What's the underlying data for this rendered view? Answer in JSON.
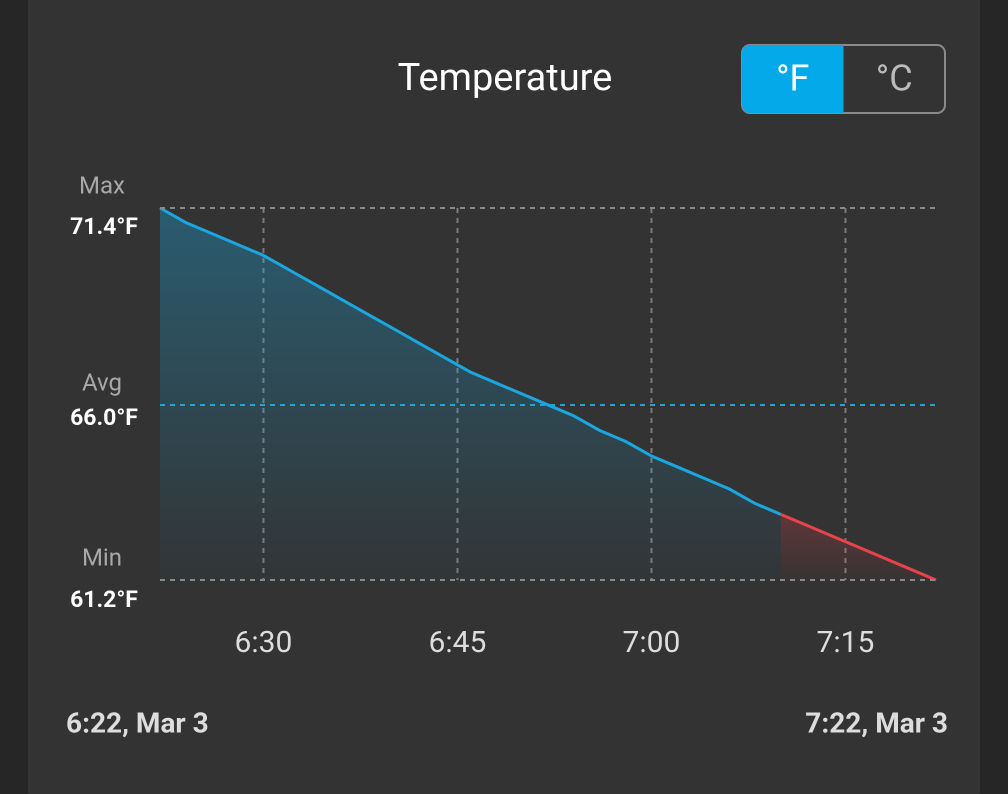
{
  "chart_data": {
    "type": "line",
    "title": "Temperature",
    "unit_toggle": {
      "options": [
        "°F",
        "°C"
      ],
      "selected": 0,
      "color": "#03a9e8"
    },
    "x": [
      382,
      384,
      386,
      388,
      390,
      392,
      394,
      396,
      398,
      400,
      402,
      404,
      406,
      408,
      410,
      412,
      414,
      416,
      418,
      420,
      422,
      424,
      426,
      428,
      430,
      432,
      434,
      436,
      438,
      440,
      442
    ],
    "xlim": [
      382,
      442
    ],
    "xticks": [
      {
        "value": 390,
        "label": "6:30"
      },
      {
        "value": 405,
        "label": "6:45"
      },
      {
        "value": 420,
        "label": "7:00"
      },
      {
        "value": 435,
        "label": "7:15"
      }
    ],
    "ylim": [
      61.2,
      71.4
    ],
    "grid": true,
    "series": [
      {
        "color": "#1aa7e0",
        "values": [
          71.4,
          71.0,
          70.7,
          70.4,
          70.1,
          69.7,
          69.3,
          68.9,
          68.5,
          68.1,
          67.7,
          67.3,
          66.9,
          66.6,
          66.3,
          66.0,
          65.7,
          65.3,
          65.0,
          64.6,
          64.3,
          64.0,
          63.7,
          63.3,
          63.0,
          null,
          null,
          null,
          null,
          null,
          null
        ]
      },
      {
        "color": "#e8434a",
        "values": [
          null,
          null,
          null,
          null,
          null,
          null,
          null,
          null,
          null,
          null,
          null,
          null,
          null,
          null,
          null,
          null,
          null,
          null,
          null,
          null,
          null,
          null,
          null,
          null,
          63.0,
          62.7,
          62.4,
          62.1,
          61.8,
          61.5,
          61.2
        ]
      }
    ],
    "reference_lines": [
      {
        "label": "Max",
        "value": 71.4,
        "value_label": "71.4°F",
        "color": "#8a8a8a"
      },
      {
        "label": "Avg",
        "value": 66.0,
        "value_label": "66.0°F",
        "color": "#1aa7e0"
      },
      {
        "label": "Min",
        "value": 61.2,
        "value_label": "61.2°F",
        "color": "#8a8a8a"
      }
    ],
    "start_label": "6:22, Mar 3",
    "end_label": "7:22, Mar 3"
  }
}
